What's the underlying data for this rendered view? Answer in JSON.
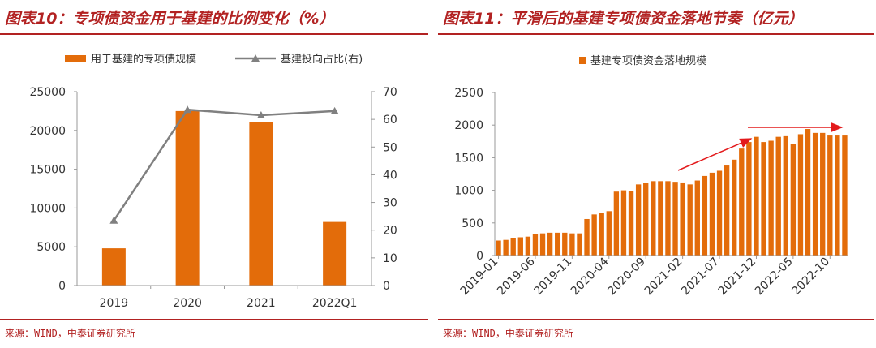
{
  "left": {
    "title": "图表10：专项债资金用于基建的比例变化（%）",
    "source": "来源：WIND，中泰证券研究所",
    "legend": [
      "用于基建的专项债规模",
      "基建投向占比(右)"
    ],
    "colors": {
      "bar": "#e36c0a",
      "line": "#808080",
      "accent": "#b22222"
    }
  },
  "right": {
    "title": "图表11：平滑后的基建专项债资金落地节奏（亿元）",
    "source": "来源：WIND，中泰证券研究所",
    "legend": [
      "基建专项债资金落地规模"
    ],
    "colors": {
      "bar": "#e36c0a",
      "arrow": "#e31a1c",
      "accent": "#b22222"
    }
  },
  "chart_data": [
    {
      "type": "bar",
      "title": "图表10：专项债资金用于基建的比例变化（%）",
      "categories": [
        "2019",
        "2020",
        "2021",
        "2022Q1"
      ],
      "series": [
        {
          "name": "用于基建的专项债规模",
          "type": "bar",
          "axis": "left",
          "values": [
            4800,
            22500,
            21100,
            8200
          ]
        },
        {
          "name": "基建投向占比(右)",
          "type": "line",
          "axis": "right",
          "values": [
            23.5,
            63.5,
            61.5,
            63
          ]
        }
      ],
      "ylim": [
        0,
        25000
      ],
      "yticks": [
        0,
        5000,
        10000,
        15000,
        20000,
        25000
      ],
      "y2lim": [
        0,
        70
      ],
      "y2ticks": [
        0,
        10,
        20,
        30,
        40,
        50,
        60,
        70
      ],
      "legend_position": "top"
    },
    {
      "type": "bar",
      "title": "图表11：平滑后的基建专项债资金落地节奏（亿元）",
      "x": [
        "2019-01",
        "2019-02",
        "2019-03",
        "2019-04",
        "2019-05",
        "2019-06",
        "2019-07",
        "2019-08",
        "2019-09",
        "2019-10",
        "2019-11",
        "2019-12",
        "2020-01",
        "2020-02",
        "2020-03",
        "2020-04",
        "2020-05",
        "2020-06",
        "2020-07",
        "2020-08",
        "2020-09",
        "2020-10",
        "2020-11",
        "2020-12",
        "2021-01",
        "2021-02",
        "2021-03",
        "2021-04",
        "2021-05",
        "2021-06",
        "2021-07",
        "2021-08",
        "2021-09",
        "2021-10",
        "2021-11",
        "2021-12",
        "2022-01",
        "2022-02",
        "2022-03",
        "2022-04",
        "2022-05",
        "2022-06",
        "2022-07",
        "2022-08",
        "2022-09",
        "2022-10",
        "2022-11",
        "2022-12"
      ],
      "xtick_labels": [
        "2019-01",
        "2019-06",
        "2019-11",
        "2020-04",
        "2020-09",
        "2021-02",
        "2021-07",
        "2021-12",
        "2022-05",
        "2022-10"
      ],
      "series": [
        {
          "name": "基建专项债资金落地规模",
          "values": [
            230,
            240,
            270,
            280,
            290,
            330,
            340,
            350,
            350,
            350,
            340,
            340,
            560,
            630,
            650,
            680,
            980,
            1000,
            990,
            1090,
            1110,
            1140,
            1140,
            1140,
            1130,
            1120,
            1090,
            1150,
            1220,
            1270,
            1300,
            1380,
            1470,
            1640,
            1740,
            1820,
            1740,
            1760,
            1820,
            1830,
            1710,
            1860,
            1940,
            1880,
            1880,
            1840,
            1840,
            1840
          ]
        }
      ],
      "ylim": [
        0,
        2500
      ],
      "yticks": [
        0,
        500,
        1000,
        1500,
        2000,
        2500
      ],
      "annotations": [
        "rising-trend-arrow",
        "flat-trend-arrow"
      ],
      "legend_position": "top"
    }
  ]
}
